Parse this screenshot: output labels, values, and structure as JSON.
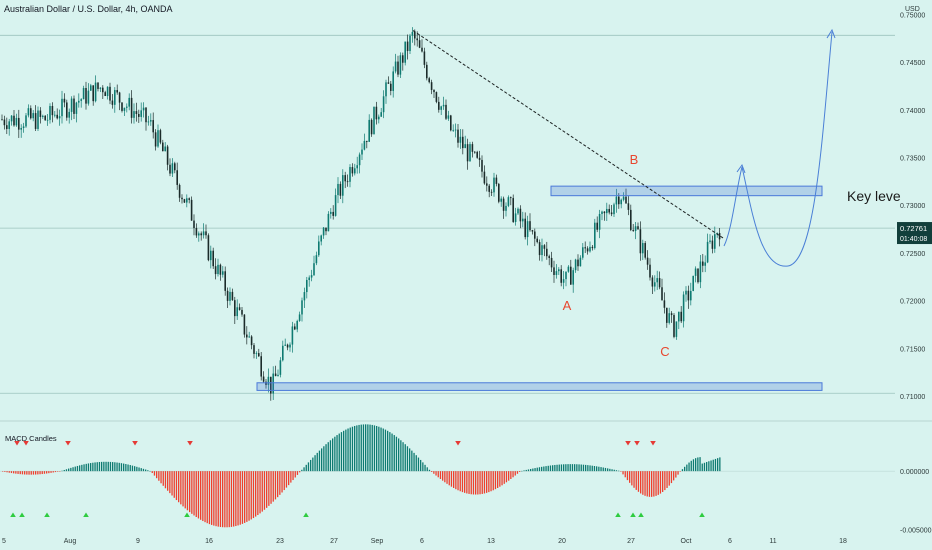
{
  "header": {
    "title": "Australian Dollar / U.S. Dollar, 4h, OANDA",
    "currency": "USD"
  },
  "price_panel": {
    "current_price": "0.72761",
    "countdown": "01:40:08",
    "key_level_label": "Key leve",
    "wave_labels": [
      "A",
      "B",
      "C"
    ]
  },
  "indicator_panel": {
    "title": "MACD Candles"
  },
  "colors": {
    "background": "#d8f3ef",
    "bull": "#0e7a71",
    "bear": "#ef3f2e",
    "zone": "#4a79d9",
    "projection": "#4a7fd6",
    "annotation": "#e8462e",
    "arrow_up": "#2ecc40",
    "arrow_down": "#e53935"
  },
  "chart_data": [
    {
      "type": "candlestick",
      "title": "Australian Dollar / U.S. Dollar, 4h, OANDA",
      "ylabel": "USD",
      "ylim": [
        0.7075,
        0.7515
      ],
      "y_ticks": [
        "0.75000",
        "0.74500",
        "0.74000",
        "0.73500",
        "0.73000",
        "0.72500",
        "0.72000",
        "0.71500",
        "0.71000"
      ],
      "x_ticks": [
        "5",
        "Aug",
        "9",
        "16",
        "23",
        "27",
        "Sep",
        "6",
        "13",
        "20",
        "27",
        "Oct",
        "6",
        "11",
        "18"
      ],
      "key_points": [
        {
          "x": "mid-Jul",
          "y": 0.739
        },
        {
          "x": "late-Jul",
          "y": 0.7425
        },
        {
          "x": "10 Aug",
          "y": 0.7385
        },
        {
          "x": "20 Aug",
          "y": 0.7108
        },
        {
          "x": "26 Aug",
          "y": 0.73
        },
        {
          "x": "3 Sep",
          "y": 0.7478
        },
        {
          "x": "10 Sep",
          "y": 0.738
        },
        {
          "x": "20 Sep",
          "y": 0.722
        },
        {
          "x": "23 Sep",
          "y": 0.7315
        },
        {
          "x": "30 Sep",
          "y": 0.717
        },
        {
          "x": "5 Oct",
          "y": 0.7276
        }
      ],
      "zones": [
        {
          "y_low": 0.731,
          "y_high": 0.732
        },
        {
          "y_low": 0.7106,
          "y_high": 0.7114
        }
      ],
      "trendline": {
        "from": {
          "x": "3 Sep",
          "y": 0.7483
        },
        "to": {
          "x": "5 Oct",
          "y": 0.7265
        }
      },
      "horizontal_lines": [
        0.7478,
        0.7276,
        0.7103
      ],
      "annotations": [
        "A",
        "B",
        "C",
        "Key leve"
      ],
      "last_price": 0.72761
    },
    {
      "type": "histogram",
      "title": "MACD Candles",
      "ylim": [
        -0.0052,
        0.0042
      ],
      "y_ticks": [
        "0.000000",
        "-0.005000"
      ],
      "phases": [
        {
          "period": "early-Jul",
          "peak": -0.0003
        },
        {
          "period": "late-Jul",
          "peak": 0.0008
        },
        {
          "period": "Aug",
          "peak": -0.0048
        },
        {
          "period": "late-Aug/early-Sep",
          "peak": 0.004
        },
        {
          "period": "mid-Sep",
          "peak": -0.002
        },
        {
          "period": "late-Sep",
          "peak": 0.0006
        },
        {
          "period": "end-Sep",
          "peak": -0.0022
        },
        {
          "period": "Oct",
          "peak": 0.0012
        }
      ]
    }
  ]
}
